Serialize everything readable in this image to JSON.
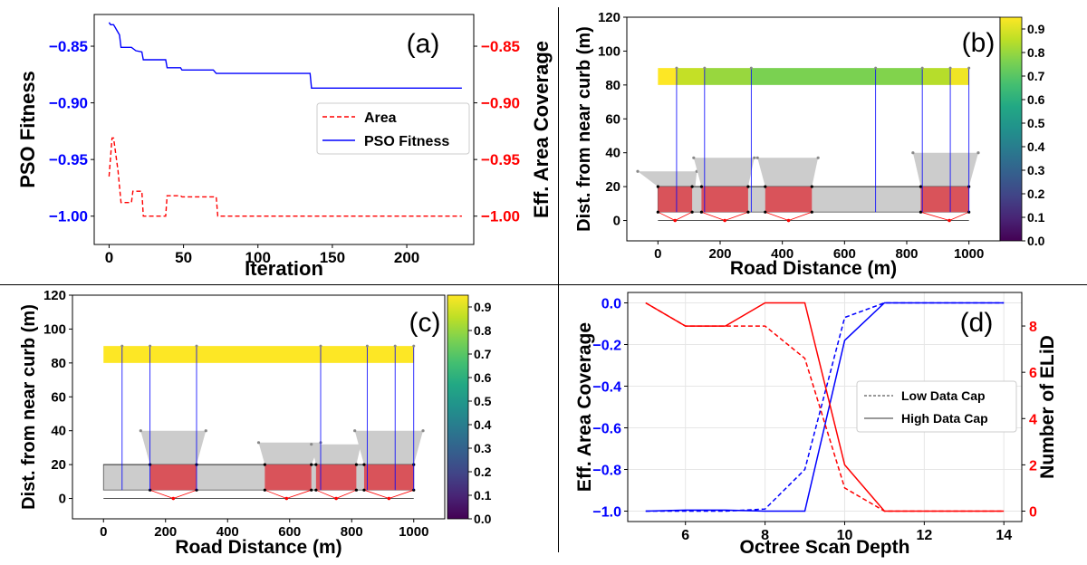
{
  "colors": {
    "blue": "#0000ff",
    "red": "#ff0000",
    "plotRed": "#d9535a",
    "gray": "#cccccc",
    "frame": "#000000"
  },
  "chart_data": [
    {
      "id": "a",
      "type": "line",
      "panel_label": "(a)",
      "xlabel": "Iteration",
      "ylabel": "PSO Fitness",
      "ylabel_right": "Eff. Area Coverage",
      "xlim": [
        -10,
        245
      ],
      "ylim": [
        -1.025,
        -0.822
      ],
      "xticks": [
        0,
        50,
        100,
        150,
        200
      ],
      "yticks": [
        -0.85,
        -0.9,
        -0.95,
        -1.0
      ],
      "ytick_labels": [
        "−0.85",
        "−0.90",
        "−0.95",
        "−1.00"
      ],
      "yticks_right": [
        -0.85,
        -0.9,
        -0.95,
        -1.0
      ],
      "ytick_labels_right": [
        "−0.85",
        "−0.90",
        "−0.95",
        "−1.00"
      ],
      "legend": {
        "position": "center-right",
        "entries": [
          "Area",
          "PSO Fitness"
        ]
      },
      "series": [
        {
          "name": "PSO Fitness",
          "style": "solid",
          "color": "#0000ff",
          "x": [
            0,
            1,
            2,
            3,
            7,
            8,
            15,
            18,
            22,
            23,
            38,
            39,
            48,
            49,
            70,
            72,
            135,
            136,
            237
          ],
          "y": [
            -0.829,
            -0.831,
            -0.831,
            -0.831,
            -0.84,
            -0.851,
            -0.851,
            -0.854,
            -0.855,
            -0.862,
            -0.862,
            -0.869,
            -0.869,
            -0.871,
            -0.871,
            -0.874,
            -0.874,
            -0.887,
            -0.887
          ]
        },
        {
          "name": "Area",
          "style": "dashed",
          "color": "#ff0000",
          "x": [
            0,
            2,
            3,
            6,
            8,
            9,
            15,
            16,
            22,
            23,
            38,
            39,
            48,
            49,
            72,
            73,
            237
          ],
          "y": [
            -0.965,
            -0.931,
            -0.931,
            -0.96,
            -0.988,
            -0.988,
            -0.988,
            -0.978,
            -0.978,
            -1.0,
            -1.0,
            -0.982,
            -0.982,
            -0.983,
            -0.983,
            -1.0,
            -1.0
          ]
        }
      ]
    },
    {
      "id": "b",
      "type": "layout",
      "panel_label": "(b)",
      "xlabel": "Road Distance (m)",
      "ylabel": "Dist. from near curb (m)",
      "xlim": [
        -100,
        1100
      ],
      "ylim": [
        -12,
        120
      ],
      "xticks": [
        0,
        200,
        400,
        600,
        800,
        1000
      ],
      "yticks": [
        0,
        20,
        40,
        60,
        80,
        100,
        120
      ],
      "colorbar_ticks": [
        "0.0",
        "0.1",
        "0.2",
        "0.3",
        "0.4",
        "0.5",
        "0.6",
        "0.7",
        "0.8",
        "0.9"
      ],
      "bar_segments": [
        {
          "x0": 0,
          "x1": 60,
          "value": 0.9
        },
        {
          "x0": 60,
          "x1": 150,
          "value": 0.82
        },
        {
          "x0": 150,
          "x1": 300,
          "value": 0.76
        },
        {
          "x0": 300,
          "x1": 700,
          "value": 0.72
        },
        {
          "x0": 700,
          "x1": 850,
          "value": 0.73
        },
        {
          "x0": 850,
          "x1": 940,
          "value": 0.8
        },
        {
          "x0": 940,
          "x1": 1000,
          "value": 0.88
        }
      ],
      "sensor_x": [
        60,
        150,
        300,
        700,
        850,
        940,
        1000
      ],
      "coverage_zones": [
        {
          "base_x0": 0,
          "base_x1": 120,
          "top_x0": -65,
          "top_x1": 125,
          "top_y": 29,
          "red_x0": 0,
          "red_x1": 110,
          "apex_x": 55
        },
        {
          "base_x0": 140,
          "base_x1": 290,
          "top_x0": 115,
          "top_x1": 310,
          "top_y": 37,
          "red_x0": 140,
          "red_x1": 290,
          "apex_x": 215
        },
        {
          "base_x0": 345,
          "base_x1": 495,
          "top_x0": 320,
          "top_x1": 515,
          "top_y": 37,
          "red_x0": 345,
          "red_x1": 495,
          "apex_x": 420
        },
        {
          "base_x0": 845,
          "base_x1": 1000,
          "top_x0": 820,
          "top_x1": 1030,
          "top_y": 40,
          "red_x0": 845,
          "red_x1": 1000,
          "apex_x": 937
        }
      ]
    },
    {
      "id": "c",
      "type": "layout",
      "panel_label": "(c)",
      "xlabel": "Road Distance (m)",
      "ylabel": "Dist. from near curb (m)",
      "xlim": [
        -100,
        1100
      ],
      "ylim": [
        -12,
        120
      ],
      "xticks": [
        0,
        200,
        400,
        600,
        800,
        1000
      ],
      "yticks": [
        0,
        20,
        40,
        60,
        80,
        100,
        120
      ],
      "colorbar_ticks": [
        "0.0",
        "0.1",
        "0.2",
        "0.3",
        "0.4",
        "0.5",
        "0.6",
        "0.7",
        "0.8",
        "0.9"
      ],
      "bar_segments": [
        {
          "x0": 0,
          "x1": 1000,
          "value": 0.9
        }
      ],
      "sensor_x": [
        60,
        150,
        300,
        700,
        850,
        940,
        1000
      ],
      "coverage_zones": [
        {
          "base_x0": 150,
          "base_x1": 300,
          "top_x0": 120,
          "top_x1": 330,
          "top_y": 40,
          "red_x0": 150,
          "red_x1": 300,
          "apex_x": 225
        },
        {
          "base_x0": 520,
          "base_x1": 670,
          "top_x0": 500,
          "top_x1": 700,
          "top_y": 33,
          "red_x0": 520,
          "red_x1": 670,
          "apex_x": 590
        },
        {
          "base_x0": 685,
          "base_x1": 815,
          "top_x0": 670,
          "top_x1": 830,
          "top_y": 32,
          "red_x0": 685,
          "red_x1": 815,
          "apex_x": 750
        },
        {
          "base_x0": 840,
          "base_x1": 1000,
          "top_x0": 810,
          "top_x1": 1030,
          "top_y": 40,
          "red_x0": 840,
          "red_x1": 1000,
          "apex_x": 920
        }
      ]
    },
    {
      "id": "d",
      "type": "line",
      "panel_label": "(d)",
      "xlabel": "Octree Scan Depth",
      "ylabel": "Eff. Area Coverage",
      "ylabel_right": "Number of ELiD",
      "xlim": [
        4.55,
        14.45
      ],
      "ylim": [
        -1.05,
        0.05
      ],
      "ylim_right": [
        -0.45,
        9.45
      ],
      "xticks": [
        6,
        8,
        10,
        12,
        14
      ],
      "yticks": [
        0.0,
        -0.2,
        -0.4,
        -0.6,
        -0.8,
        -1.0
      ],
      "ytick_labels": [
        "0.0",
        "−0.2",
        "−0.4",
        "−0.6",
        "−0.8",
        "−1.0"
      ],
      "yticks_right": [
        0,
        2,
        4,
        6,
        8
      ],
      "grid": true,
      "legend": {
        "position": "center-right",
        "entries": [
          "Low Data Cap",
          "High Data Cap"
        ]
      },
      "x": [
        5,
        6,
        7,
        8,
        9,
        10,
        11,
        12,
        13,
        14
      ],
      "series": [
        {
          "name": "Low Data Cap",
          "metric": "Eff. Area Coverage",
          "axis": "left",
          "style": "dashed",
          "color": "#0000ff",
          "y": [
            -1.0,
            -1.0,
            -1.0,
            -0.99,
            -0.8,
            -0.07,
            0.0,
            0.0,
            0.0,
            0.0
          ]
        },
        {
          "name": "High Data Cap",
          "metric": "Eff. Area Coverage",
          "axis": "left",
          "style": "solid",
          "color": "#0000ff",
          "y": [
            -1.0,
            -0.995,
            -0.995,
            -1.0,
            -1.0,
            -0.18,
            0.0,
            0.0,
            0.0,
            0.0
          ]
        },
        {
          "name": "Low Data Cap",
          "metric": "Number of ELiD",
          "axis": "right",
          "style": "dashed",
          "color": "#ff0000",
          "y": [
            9,
            8,
            8,
            8,
            6.6,
            1.0,
            0,
            0,
            0,
            0
          ]
        },
        {
          "name": "High Data Cap",
          "metric": "Number of ELiD",
          "axis": "right",
          "style": "solid",
          "color": "#ff0000",
          "y": [
            9,
            8,
            8,
            9,
            9,
            2.0,
            0,
            0,
            0,
            0
          ]
        }
      ]
    }
  ]
}
